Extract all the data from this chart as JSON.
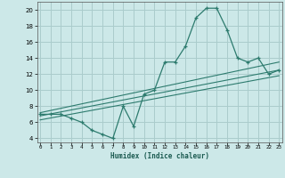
{
  "main_x": [
    0,
    1,
    2,
    3,
    4,
    5,
    6,
    7,
    8,
    9,
    10,
    11,
    12,
    13,
    14,
    15,
    16,
    17,
    18,
    19,
    20,
    21,
    22,
    23
  ],
  "main_y": [
    7.0,
    7.0,
    7.0,
    6.5,
    6.0,
    5.0,
    4.5,
    4.0,
    8.0,
    5.5,
    9.5,
    10.0,
    13.5,
    13.5,
    15.5,
    19.0,
    20.2,
    20.2,
    17.5,
    14.0,
    13.5,
    14.0,
    12.0,
    12.5
  ],
  "trend1_x": [
    0,
    23
  ],
  "trend1_y": [
    7.2,
    13.5
  ],
  "trend2_x": [
    0,
    23
  ],
  "trend2_y": [
    6.8,
    12.5
  ],
  "trend3_x": [
    0,
    23
  ],
  "trend3_y": [
    6.3,
    11.8
  ],
  "line_color": "#2d7b6e",
  "bg_color": "#cce8e8",
  "grid_color": "#aacccc",
  "xlabel": "Humidex (Indice chaleur)",
  "xlim": [
    -0.3,
    23.3
  ],
  "ylim": [
    3.5,
    21.0
  ],
  "yticks": [
    4,
    6,
    8,
    10,
    12,
    14,
    16,
    18,
    20
  ],
  "xticks": [
    0,
    1,
    2,
    3,
    4,
    5,
    6,
    7,
    8,
    9,
    10,
    11,
    12,
    13,
    14,
    15,
    16,
    17,
    18,
    19,
    20,
    21,
    22,
    23
  ]
}
